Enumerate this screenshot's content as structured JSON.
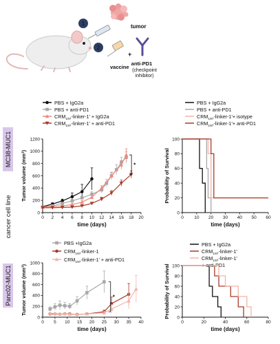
{
  "schematic": {
    "step1": "1",
    "step2": "2",
    "tumor_label": "tumor",
    "vaccine_label": "vaccine",
    "plus": "+",
    "antipd1_label": "anti-PD1",
    "checkpoint_label_1": "(checkpoint",
    "checkpoint_label_2": "inhibitor)"
  },
  "side_labels": {
    "top_model": "MC38-MUC1",
    "middle": "cancer cell line",
    "bottom_model": "Panc02-MUC1"
  },
  "colors": {
    "black": "#111111",
    "gray": "#a8a8a8",
    "salmon": "#ec8a7c",
    "darkred": "#a63a26",
    "pink": "#f2b3a8",
    "lavender": "#d9c7ea",
    "badge": "#2d3d63",
    "tumor": "#f1a6a6",
    "antibody": "#5b4c9a"
  },
  "legends": {
    "tl": [
      {
        "prefix": "PBS + IgG2a",
        "sub": "",
        "suffix": ""
      },
      {
        "prefix": "PBS + anti-PD1",
        "sub": "",
        "suffix": ""
      },
      {
        "prefix": "CRM",
        "sub": "197",
        "suffix": "-linker-1' + IgG2a"
      },
      {
        "prefix": "CRM",
        "sub": "197",
        "suffix": "-linker-1' + anti-PD1"
      }
    ],
    "tr": [
      {
        "prefix": "PBS + IgG2a",
        "sub": "",
        "suffix": ""
      },
      {
        "prefix": "PBS + anti-PD1",
        "sub": "",
        "suffix": ""
      },
      {
        "prefix": "CRM",
        "sub": "197",
        "suffix": "-linker-1'+ isotype"
      },
      {
        "prefix": "CRM",
        "sub": "197",
        "suffix": "-linker-1'+ anti-PD1"
      }
    ],
    "bl": [
      {
        "prefix": "PBS +IgG2a",
        "sub": "",
        "suffix": ""
      },
      {
        "prefix": "CRM",
        "sub": "197",
        "suffix": "-linker-1"
      },
      {
        "prefix": "CRM",
        "sub": "197",
        "suffix": "-linker-1' + anti-PD1"
      }
    ],
    "br": [
      {
        "prefix": "PBS + IgG2a",
        "sub": "",
        "suffix": ""
      },
      {
        "prefix": "CRM",
        "sub": "197",
        "suffix": "-linker-1'"
      },
      {
        "prefix": "CRM",
        "sub": "197",
        "suffix": "-linker-1'"
      },
      {
        "prefix": "+ anti-PD1",
        "sub": "",
        "suffix": ""
      }
    ]
  },
  "chart_data": [
    {
      "id": "tl",
      "type": "line",
      "xlabel": "time (days)",
      "ylabel": "Tumor volume (mm³)",
      "xlim": [
        0,
        20
      ],
      "ylim": [
        0,
        1200
      ],
      "xticks": [
        0,
        2,
        4,
        6,
        8,
        10,
        12,
        14,
        16,
        18,
        20
      ],
      "yticks": [
        0,
        200,
        400,
        600,
        800,
        1000,
        1200
      ],
      "significance": "*",
      "series": [
        {
          "name": "PBS + IgG2a",
          "color": "black",
          "marker": "circle",
          "x": [
            0,
            2,
            4,
            6,
            8,
            10
          ],
          "y": [
            95,
            140,
            190,
            260,
            340,
            550
          ],
          "err": [
            10,
            20,
            30,
            60,
            120,
            180
          ]
        },
        {
          "name": "PBS + anti-PD1",
          "color": "gray",
          "marker": "square",
          "x": [
            0,
            2,
            4,
            6,
            8,
            10,
            12,
            13,
            14,
            15,
            16,
            17
          ],
          "y": [
            90,
            110,
            150,
            190,
            240,
            300,
            370,
            480,
            600,
            700,
            820,
            900
          ],
          "err": [
            10,
            15,
            20,
            25,
            30,
            40,
            50,
            60,
            60,
            80,
            80,
            90
          ]
        },
        {
          "name": "CRM197-linker-1' + IgG2a",
          "color": "salmon",
          "marker": "triangle",
          "x": [
            0,
            2,
            4,
            6,
            8,
            10,
            12,
            14,
            16,
            17
          ],
          "y": [
            90,
            100,
            110,
            130,
            170,
            250,
            400,
            600,
            780,
            940
          ],
          "err": [
            10,
            10,
            15,
            20,
            25,
            30,
            40,
            50,
            70,
            100
          ]
        },
        {
          "name": "CRM197-linker-1' + anti-PD1",
          "color": "darkred",
          "marker": "tri-down",
          "x": [
            0,
            2,
            4,
            6,
            8,
            10,
            12,
            14,
            16,
            18
          ],
          "y": [
            80,
            80,
            85,
            90,
            110,
            150,
            220,
            320,
            480,
            620
          ],
          "err": [
            8,
            8,
            10,
            12,
            15,
            20,
            30,
            40,
            50,
            60
          ]
        }
      ]
    },
    {
      "id": "tr",
      "type": "line",
      "xlabel": "time (days)",
      "ylabel": "Probability of Survival",
      "xlim": [
        0,
        60
      ],
      "ylim": [
        0,
        100
      ],
      "xticks": [
        0,
        10,
        20,
        30,
        40,
        50,
        60
      ],
      "yticks": [
        0,
        20,
        40,
        60,
        80,
        100
      ],
      "series": [
        {
          "name": "PBS + IgG2a",
          "color": "black",
          "x": [
            0,
            12,
            12,
            14,
            14,
            16,
            16
          ],
          "y": [
            100,
            100,
            60,
            60,
            40,
            40,
            0
          ]
        },
        {
          "name": "PBS + anti-PD1",
          "color": "gray",
          "x": [
            0,
            17,
            17,
            18,
            18,
            20,
            20
          ],
          "y": [
            100,
            100,
            60,
            60,
            20,
            20,
            0
          ]
        },
        {
          "name": "CRM197-linker-1'+ isotype",
          "color": "pink",
          "x": [
            0,
            18,
            18,
            20,
            20,
            60
          ],
          "y": [
            100,
            100,
            80,
            80,
            20,
            20
          ]
        },
        {
          "name": "CRM197-linker-1'+ anti-PD1",
          "color": "darkred",
          "x": [
            0,
            20,
            20,
            22,
            22,
            60
          ],
          "y": [
            100,
            100,
            80,
            80,
            20,
            20
          ]
        }
      ]
    },
    {
      "id": "bl",
      "type": "line",
      "xlabel": "time (days)",
      "ylabel": "Tumor volume (mm³)",
      "xlim": [
        0,
        40
      ],
      "ylim": [
        0,
        1000
      ],
      "xticks": [
        0,
        5,
        10,
        15,
        20,
        25,
        30,
        35,
        40
      ],
      "yticks": [
        0,
        200,
        400,
        600,
        800,
        1000
      ],
      "significance": "*",
      "series": [
        {
          "name": "PBS +IgG2a",
          "color": "gray",
          "marker": "square",
          "x": [
            3,
            5,
            7,
            9,
            11,
            14,
            18,
            25
          ],
          "y": [
            150,
            190,
            220,
            210,
            200,
            300,
            450,
            650
          ],
          "err": [
            40,
            60,
            80,
            60,
            50,
            80,
            120,
            200
          ]
        },
        {
          "name": "CRM197-linker-1",
          "color": "darkred",
          "marker": "circle",
          "x": [
            3,
            5,
            7,
            9,
            11,
            14,
            18,
            25,
            28,
            35
          ],
          "y": [
            60,
            60,
            55,
            60,
            60,
            50,
            60,
            100,
            250,
            420
          ],
          "err": [
            15,
            15,
            15,
            15,
            15,
            15,
            20,
            30,
            120,
            200
          ]
        },
        {
          "name": "CRM197-linker-1' + anti-PD1",
          "color": "pink",
          "marker": "triangle",
          "x": [
            3,
            5,
            7,
            9,
            11,
            14,
            18,
            25,
            28,
            35,
            38
          ],
          "y": [
            70,
            65,
            60,
            60,
            55,
            50,
            60,
            80,
            150,
            300,
            520
          ],
          "err": [
            15,
            15,
            15,
            15,
            15,
            15,
            20,
            30,
            80,
            150,
            250
          ]
        }
      ]
    },
    {
      "id": "br",
      "type": "line",
      "xlabel": "time (days)",
      "ylabel": "Probability of Survival",
      "xlim": [
        0,
        80
      ],
      "ylim": [
        0,
        100
      ],
      "xticks": [
        0,
        20,
        40,
        60,
        80
      ],
      "yticks": [
        0,
        20,
        40,
        60,
        80,
        100
      ],
      "series": [
        {
          "name": "PBS + IgG2a",
          "color": "black",
          "x": [
            0,
            25,
            25,
            28,
            28,
            33,
            33,
            36,
            36
          ],
          "y": [
            100,
            100,
            60,
            60,
            40,
            40,
            20,
            20,
            0
          ]
        },
        {
          "name": "CRM197-linker-1'",
          "color": "darkred",
          "x": [
            0,
            30,
            30,
            34,
            34,
            45,
            45,
            52,
            52,
            57,
            57
          ],
          "y": [
            100,
            100,
            80,
            80,
            60,
            60,
            40,
            40,
            20,
            20,
            0
          ]
        },
        {
          "name": "CRM197-linker-1' + anti-PD1",
          "color": "pink",
          "x": [
            0,
            34,
            34,
            40,
            40,
            52,
            52,
            60,
            60,
            64,
            64
          ],
          "y": [
            100,
            100,
            80,
            80,
            60,
            60,
            40,
            40,
            20,
            20,
            0
          ]
        }
      ]
    }
  ]
}
